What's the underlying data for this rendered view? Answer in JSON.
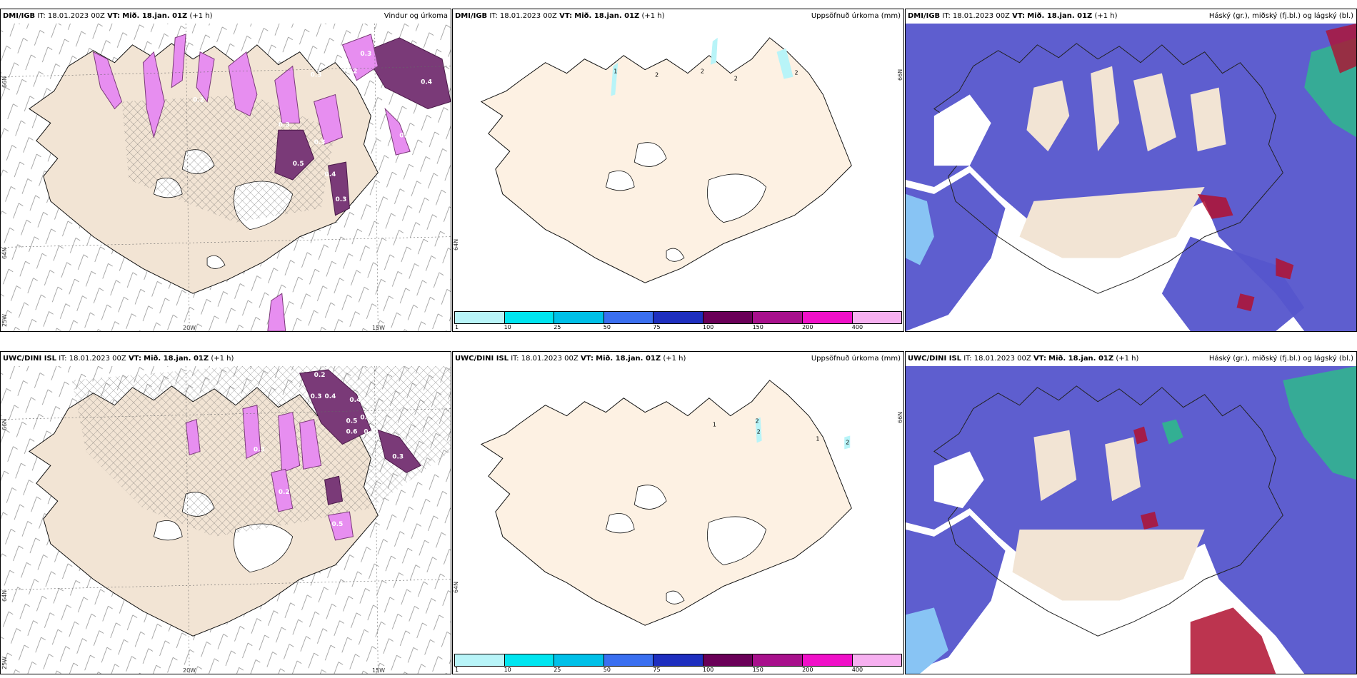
{
  "rows": [
    {
      "source": "DMI/IGB",
      "panels": [
        {
          "model": "DMI/IGB",
          "it_label": "IT:",
          "it_value": "18.01.2023 00Z",
          "vt_label": "VT:",
          "vt_value": "Mið. 18.jan. 01Z",
          "lead": "(+1 h)",
          "title": "Vindur og úrkoma",
          "contour_labels": [
            "0.3",
            "0.4",
            "0.2",
            "0.3",
            "0.2",
            "0.3",
            "0.2",
            "0.3",
            "0.5",
            "0.3",
            "0.4",
            "0.3"
          ]
        },
        {
          "model": "DMI/IGB",
          "it_label": "IT:",
          "it_value": "18.01.2023 00Z",
          "vt_label": "VT:",
          "vt_value": "Mið. 18.jan. 01Z",
          "lead": "(+1 h)",
          "title": "Uppsöfnuð úrkoma (mm)",
          "contour_labels": [
            "1",
            "2",
            "2",
            "2",
            "2"
          ]
        },
        {
          "model": "DMI/IGB",
          "it_label": "IT:",
          "it_value": "18.01.2023 00Z",
          "vt_label": "VT:",
          "vt_value": "Mið. 18.jan. 01Z",
          "lead": "(+1 h)",
          "title": "Háský (gr.), miðský (fj.bl.) og lágský (bl.)"
        }
      ]
    },
    {
      "source": "UWC/DINI ISL",
      "panels": [
        {
          "model": "UWC/DINI ISL",
          "it_label": "IT:",
          "it_value": "18.01.2023 00Z",
          "vt_label": "VT:",
          "vt_value": "Mið. 18.jan. 01Z",
          "lead": "(+1 h)",
          "title": "",
          "contour_labels": [
            "0.2",
            "0.3",
            "0.4",
            "0.4",
            "0.5",
            "0.6",
            "0.4",
            "0.3",
            "0.3",
            "0.2",
            "0.3",
            "0.5"
          ]
        },
        {
          "model": "UWC/DINI ISL",
          "it_label": "IT:",
          "it_value": "18.01.2023 00Z",
          "vt_label": "VT:",
          "vt_value": "Mið. 18.jan. 01Z",
          "lead": "(+1 h)",
          "title": "Uppsöfnuð úrkoma (mm)",
          "contour_labels": [
            "1",
            "2",
            "2",
            "1",
            "2"
          ]
        },
        {
          "model": "UWC/DINI ISL",
          "it_label": "IT:",
          "it_value": "18.01.2023 00Z",
          "vt_label": "VT:",
          "vt_value": "Mið. 18.jan. 01Z",
          "lead": "(+1 h)",
          "title": "Háský (gr.), miðský (fj.bl.) og lágský (bl.)"
        }
      ]
    }
  ],
  "axis_labels": {
    "lat_66": "66N",
    "lat_64": "64N",
    "lon_25": "25W",
    "lon_20": "20W",
    "lon_15": "15W"
  },
  "colorbar": {
    "ticks": [
      "1",
      "10",
      "25",
      "50",
      "75",
      "100",
      "150",
      "200",
      "400"
    ],
    "colors": [
      "#b8f4f8",
      "#00e5f0",
      "#00c0e8",
      "#3a6ff0",
      "#1e2fbf",
      "#6a0058",
      "#a8108c",
      "#f010c8",
      "#f6b0f0"
    ]
  },
  "colors": {
    "land": "#f2e4d4",
    "land_light": "#fdf1e3",
    "precip_light": "#e78ef0",
    "precip_dark": "#7a3a78",
    "cloud_low": "#5555cc",
    "cloud_mid": "#88c4f4",
    "cloud_high": "#2fb88c",
    "cloud_red": "#b01030"
  }
}
